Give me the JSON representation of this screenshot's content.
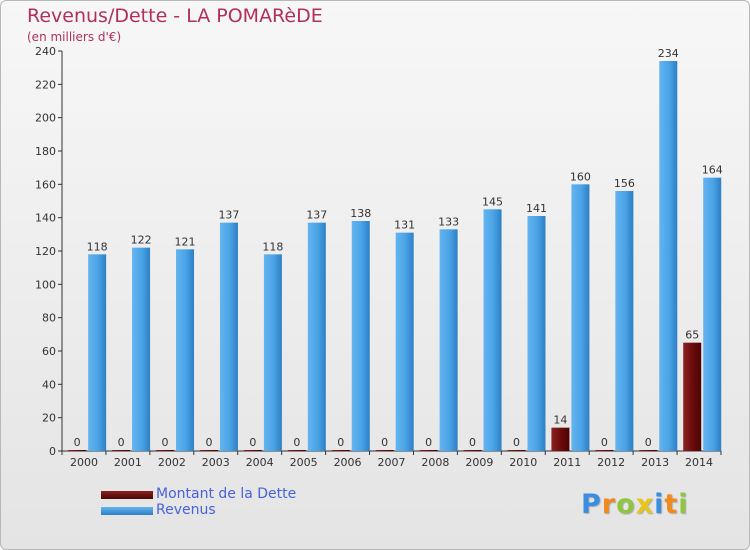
{
  "title": "Revenus/Dette - LA POMARèDE",
  "subtitle": "(en milliers d'€)",
  "logo": "Proxiti",
  "colors": {
    "dette": "#6b0a0a",
    "revenus": "#3f9be0",
    "axis": "#333333",
    "title": "#b0305a",
    "legend_text": "#4a62d8"
  },
  "legend": [
    {
      "label": "Montant de la Dette",
      "color": "#6b0a0a"
    },
    {
      "label": "Revenus",
      "color": "#3f9be0"
    }
  ],
  "chart_data": {
    "type": "bar",
    "categories": [
      "2000",
      "2001",
      "2002",
      "2003",
      "2004",
      "2005",
      "2006",
      "2007",
      "2008",
      "2009",
      "2010",
      "2011",
      "2012",
      "2013",
      "2014"
    ],
    "series": [
      {
        "name": "Montant de la Dette",
        "values": [
          0,
          0,
          0,
          0,
          0,
          0,
          0,
          0,
          0,
          0,
          0,
          14,
          0,
          0,
          65
        ]
      },
      {
        "name": "Revenus",
        "values": [
          118,
          122,
          121,
          137,
          118,
          137,
          138,
          131,
          133,
          145,
          141,
          160,
          156,
          234,
          164
        ]
      }
    ],
    "ylim": [
      0,
      240
    ],
    "yticks": [
      0,
      20,
      40,
      60,
      80,
      100,
      120,
      140,
      160,
      180,
      200,
      220,
      240
    ],
    "grid": false,
    "legend_position": "bottom-left"
  }
}
